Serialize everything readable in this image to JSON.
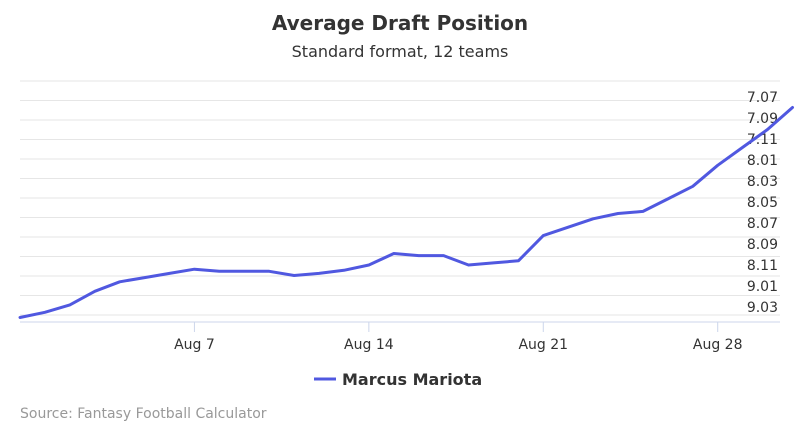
{
  "colors": {
    "series": "#5058e0",
    "grid": "#e6e6e6",
    "axis": "#ccd6eb",
    "text": "#333333",
    "credit": "#999999"
  },
  "chart_data": {
    "type": "line",
    "title": "Average Draft Position",
    "subtitle": "Standard format, 12 teams",
    "credit": "Source: Fantasy Football Calculator",
    "legend_position": "bottom-center",
    "grid": true,
    "x_ticks": [
      "Aug 7",
      "Aug 14",
      "Aug 21",
      "Aug 28"
    ],
    "y_ticks": [
      "7.07",
      "7.09",
      "7.11",
      "8.01",
      "8.03",
      "8.05",
      "8.07",
      "8.09",
      "8.11",
      "9.01",
      "9.03"
    ],
    "y_axis_side": "right",
    "y_reversed": true,
    "series": [
      {
        "name": "Marcus Mariota",
        "points": [
          [
            "Jul 31",
            9.04
          ],
          [
            "Aug 1",
            9.035
          ],
          [
            "Aug 2",
            9.028
          ],
          [
            "Aug 3",
            9.015
          ],
          [
            "Aug 4",
            9.006
          ],
          [
            "Aug 5",
            9.002
          ],
          [
            "Aug 6",
            8.118
          ],
          [
            "Aug 7",
            8.114
          ],
          [
            "Aug 8",
            8.116
          ],
          [
            "Aug 9",
            8.116
          ],
          [
            "Aug 10",
            8.116
          ],
          [
            "Aug 11",
            8.12
          ],
          [
            "Aug 12",
            8.118
          ],
          [
            "Aug 13",
            8.115
          ],
          [
            "Aug 14",
            8.11
          ],
          [
            "Aug 15",
            8.099
          ],
          [
            "Aug 16",
            8.101
          ],
          [
            "Aug 17",
            8.101
          ],
          [
            "Aug 18",
            8.11
          ],
          [
            "Aug 19",
            8.108
          ],
          [
            "Aug 20",
            8.106
          ],
          [
            "Aug 21",
            8.082
          ],
          [
            "Aug 22",
            8.074
          ],
          [
            "Aug 23",
            8.066
          ],
          [
            "Aug 24",
            8.061
          ],
          [
            "Aug 25",
            8.059
          ],
          [
            "Aug 26",
            8.047
          ],
          [
            "Aug 27",
            8.035
          ],
          [
            "Aug 28",
            8.015
          ],
          [
            "Aug 29",
            7.118
          ],
          [
            "Aug 30",
            7.101
          ],
          [
            "Aug 31",
            7.08
          ]
        ]
      }
    ]
  }
}
